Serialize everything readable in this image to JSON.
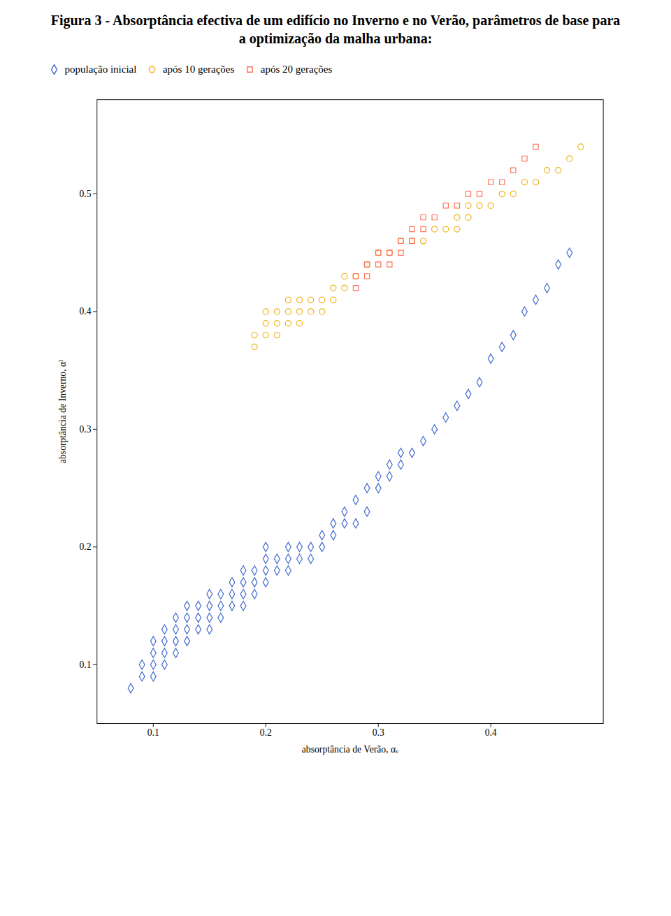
{
  "chart_data": {
    "type": "scatter",
    "title": "Figura 3 - Absorptância efectiva de um edifício no Inverno e no Verão, parâmetros de base para a optimização da malha urbana:",
    "xlabel": "absorptância de Verão, αᵥ",
    "ylabel": "absorptância de Inverno, αᴵ",
    "xlim": [
      0.05,
      0.5
    ],
    "ylim": [
      0.05,
      0.58
    ],
    "xticks": [
      0.1,
      0.2,
      0.3,
      0.4
    ],
    "yticks": [
      0.1,
      0.2,
      0.3,
      0.4,
      0.5
    ],
    "grid": false,
    "legend": "top",
    "series": [
      {
        "name": "população inicial",
        "marker": "diamond",
        "x": [
          0.08,
          0.09,
          0.09,
          0.1,
          0.1,
          0.1,
          0.1,
          0.11,
          0.11,
          0.11,
          0.11,
          0.12,
          0.12,
          0.12,
          0.12,
          0.13,
          0.13,
          0.13,
          0.13,
          0.14,
          0.14,
          0.14,
          0.15,
          0.15,
          0.15,
          0.15,
          0.16,
          0.16,
          0.16,
          0.17,
          0.17,
          0.17,
          0.18,
          0.18,
          0.18,
          0.18,
          0.19,
          0.19,
          0.19,
          0.2,
          0.2,
          0.2,
          0.2,
          0.21,
          0.21,
          0.22,
          0.22,
          0.22,
          0.23,
          0.23,
          0.24,
          0.24,
          0.25,
          0.25,
          0.26,
          0.26,
          0.27,
          0.27,
          0.28,
          0.28,
          0.29,
          0.29,
          0.3,
          0.3,
          0.31,
          0.31,
          0.32,
          0.32,
          0.33,
          0.34,
          0.35,
          0.36,
          0.37,
          0.38,
          0.39,
          0.4,
          0.41,
          0.42,
          0.43,
          0.44,
          0.45,
          0.46,
          0.47
        ],
        "values": [
          0.08,
          0.09,
          0.1,
          0.09,
          0.1,
          0.11,
          0.12,
          0.1,
          0.11,
          0.12,
          0.13,
          0.11,
          0.12,
          0.13,
          0.14,
          0.12,
          0.13,
          0.14,
          0.15,
          0.13,
          0.14,
          0.15,
          0.13,
          0.14,
          0.15,
          0.16,
          0.14,
          0.15,
          0.16,
          0.15,
          0.16,
          0.17,
          0.15,
          0.16,
          0.17,
          0.18,
          0.16,
          0.17,
          0.18,
          0.17,
          0.18,
          0.19,
          0.2,
          0.18,
          0.19,
          0.18,
          0.19,
          0.2,
          0.19,
          0.2,
          0.19,
          0.2,
          0.2,
          0.21,
          0.21,
          0.22,
          0.22,
          0.23,
          0.22,
          0.24,
          0.23,
          0.25,
          0.25,
          0.26,
          0.26,
          0.27,
          0.27,
          0.28,
          0.28,
          0.29,
          0.3,
          0.31,
          0.32,
          0.33,
          0.34,
          0.36,
          0.37,
          0.38,
          0.4,
          0.41,
          0.42,
          0.44,
          0.45
        ]
      },
      {
        "name": "após 10 gerações",
        "marker": "circle",
        "x": [
          0.19,
          0.19,
          0.2,
          0.2,
          0.2,
          0.21,
          0.21,
          0.21,
          0.22,
          0.22,
          0.22,
          0.23,
          0.23,
          0.23,
          0.24,
          0.24,
          0.25,
          0.25,
          0.26,
          0.26,
          0.27,
          0.27,
          0.28,
          0.29,
          0.3,
          0.31,
          0.32,
          0.33,
          0.34,
          0.35,
          0.36,
          0.37,
          0.37,
          0.38,
          0.38,
          0.39,
          0.4,
          0.41,
          0.42,
          0.43,
          0.44,
          0.45,
          0.46,
          0.47,
          0.48
        ],
        "values": [
          0.37,
          0.38,
          0.38,
          0.39,
          0.4,
          0.38,
          0.39,
          0.4,
          0.39,
          0.4,
          0.41,
          0.39,
          0.4,
          0.41,
          0.4,
          0.41,
          0.4,
          0.41,
          0.41,
          0.42,
          0.42,
          0.43,
          0.43,
          0.44,
          0.45,
          0.45,
          0.46,
          0.46,
          0.46,
          0.47,
          0.47,
          0.47,
          0.48,
          0.48,
          0.49,
          0.49,
          0.49,
          0.5,
          0.5,
          0.51,
          0.51,
          0.52,
          0.52,
          0.53,
          0.54
        ]
      },
      {
        "name": "após 20 gerações",
        "marker": "square",
        "x": [
          0.28,
          0.28,
          0.29,
          0.29,
          0.3,
          0.3,
          0.31,
          0.31,
          0.32,
          0.32,
          0.33,
          0.33,
          0.34,
          0.34,
          0.35,
          0.36,
          0.37,
          0.38,
          0.39,
          0.4,
          0.41,
          0.42,
          0.43,
          0.44
        ],
        "values": [
          0.42,
          0.43,
          0.43,
          0.44,
          0.44,
          0.45,
          0.44,
          0.45,
          0.45,
          0.46,
          0.46,
          0.47,
          0.47,
          0.48,
          0.48,
          0.49,
          0.49,
          0.5,
          0.5,
          0.51,
          0.51,
          0.52,
          0.53,
          0.54
        ]
      }
    ]
  }
}
